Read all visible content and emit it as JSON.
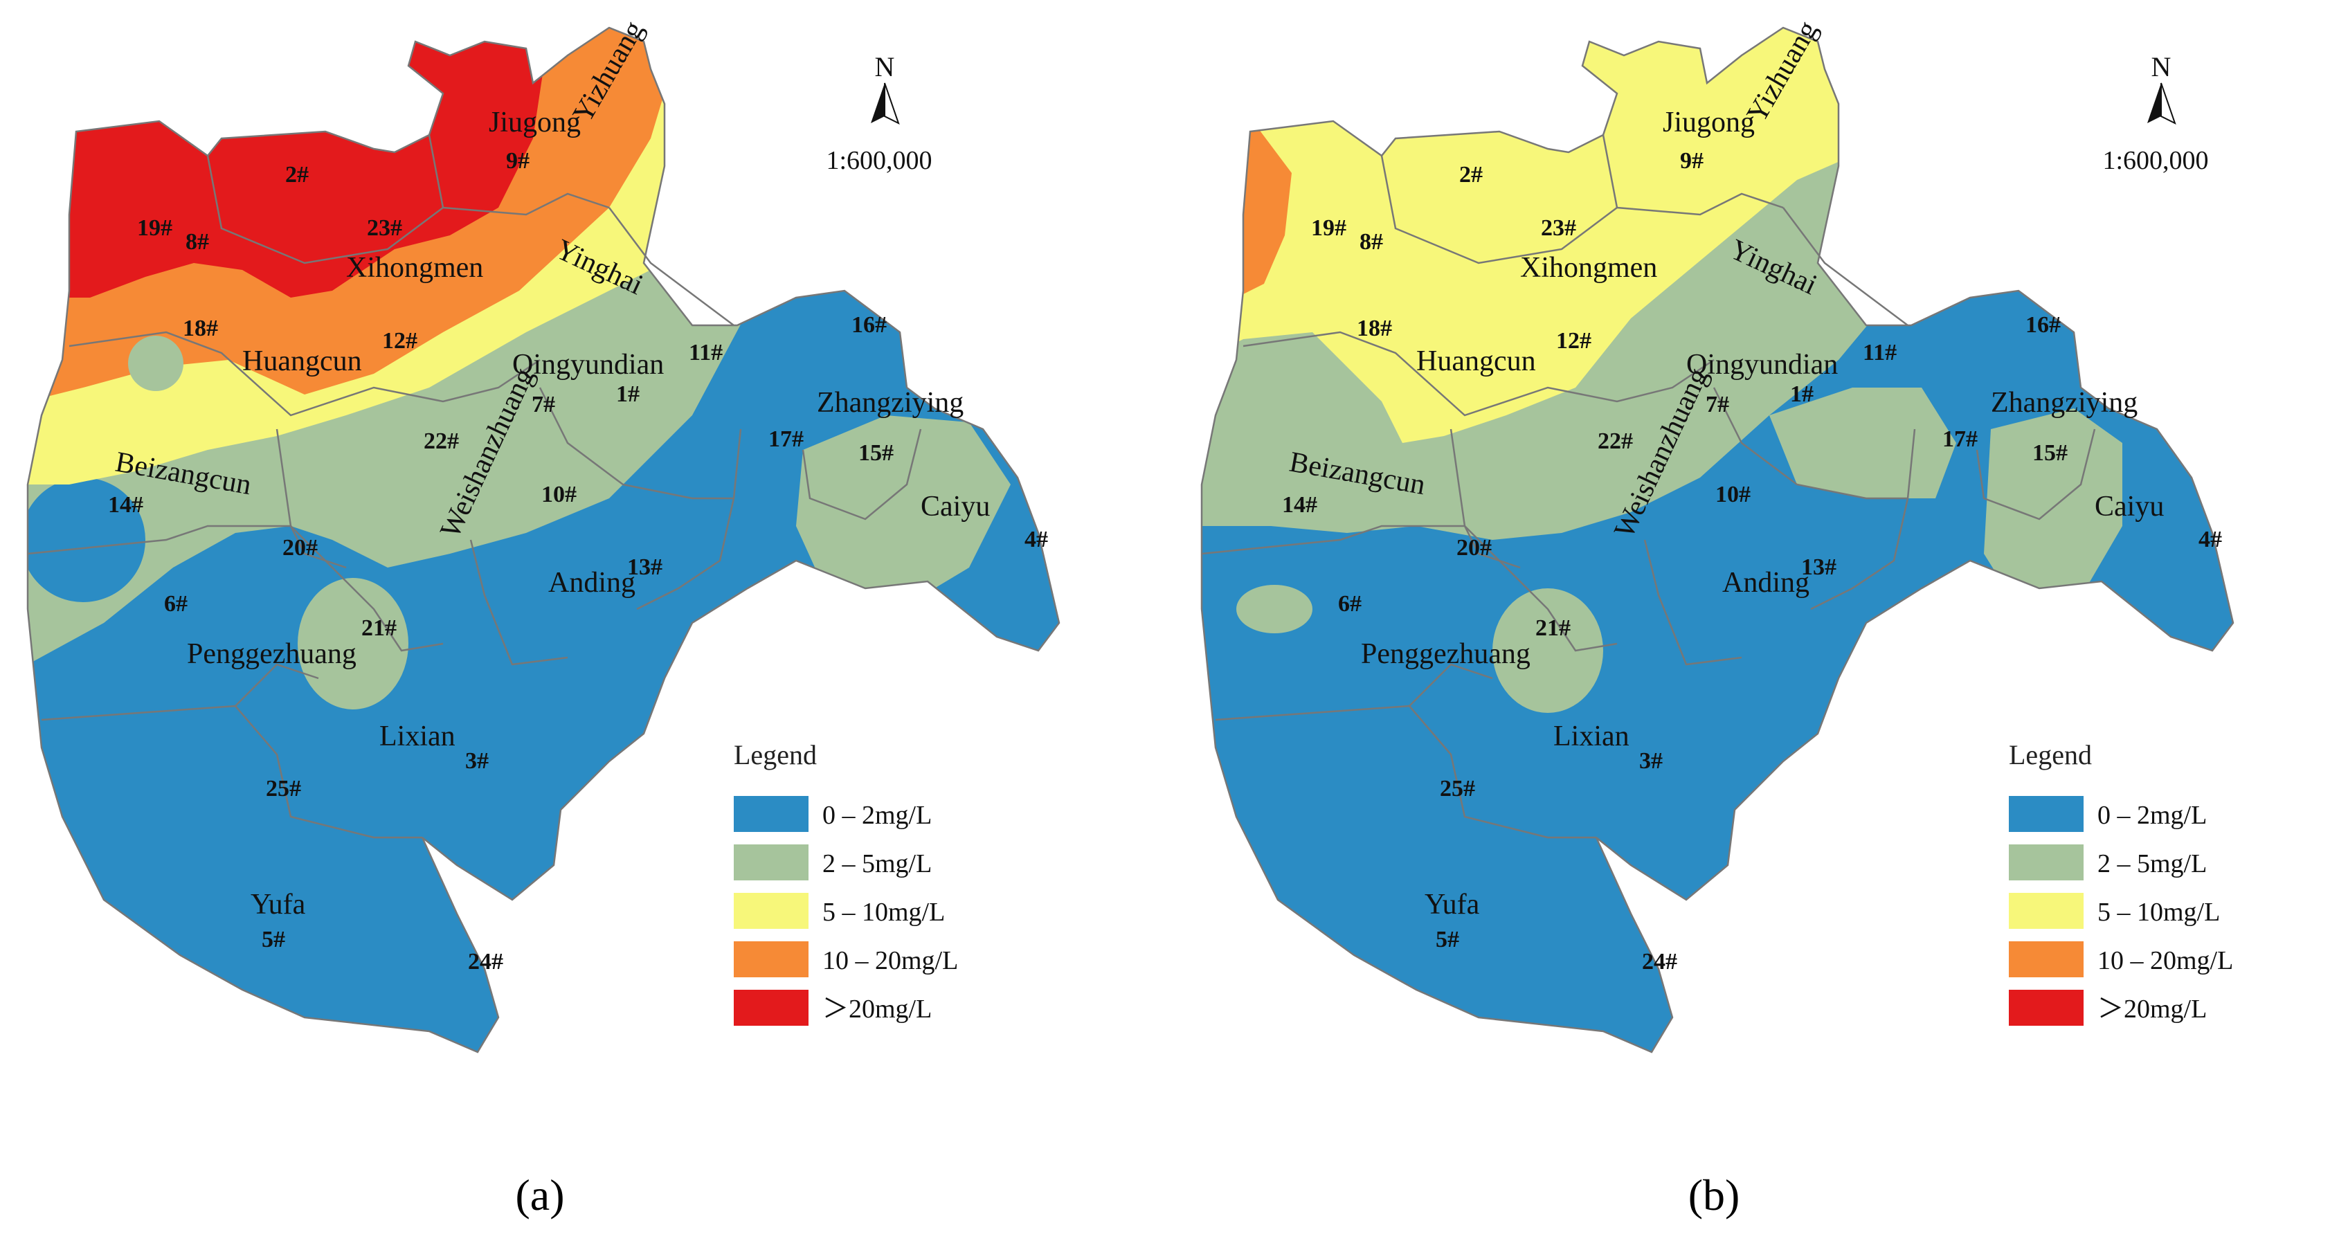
{
  "panels": [
    {
      "id": "a",
      "caption": "(a)",
      "north_label": "N",
      "scale": "1:600,000",
      "legend_title": "Legend",
      "class_colors": [
        "#2b8cc4",
        "#a6c49c",
        "#f7f77a",
        "#f68a36",
        "#e31a1c"
      ]
    },
    {
      "id": "b",
      "caption": "(b)",
      "north_label": "N",
      "scale": "1:600,000",
      "legend_title": "Legend",
      "class_colors": [
        "#2b8cc4",
        "#a6c49c",
        "#f7f77a",
        "#f68a36",
        "#e31a1c"
      ]
    }
  ],
  "legend": [
    {
      "label": "0 – 2mg/L",
      "color": "#2b8cc4"
    },
    {
      "label": "2 – 5mg/L",
      "color": "#a6c49c"
    },
    {
      "label": "5 – 10mg/L",
      "color": "#f7f77a"
    },
    {
      "label": "10 – 20mg/L",
      "color": "#f68a36"
    },
    {
      "label": "＞20mg/L",
      "color": "#e31a1c"
    }
  ],
  "places": [
    "Jiugong",
    "Yizhuang",
    "Yinghai",
    "Xihongmen",
    "Huangcun",
    "Qingyundian",
    "Zhangziying",
    "Beizangcun",
    "Weishanzhuang",
    "Caiyu",
    "Anding",
    "Penggezhuang",
    "Lixian",
    "Yufa"
  ],
  "sites": [
    "2#",
    "9#",
    "19#",
    "8#",
    "23#",
    "18#",
    "12#",
    "11#",
    "16#",
    "1#",
    "7#",
    "22#",
    "17#",
    "15#",
    "14#",
    "10#",
    "20#",
    "13#",
    "4#",
    "6#",
    "21#",
    "3#",
    "25#",
    "5#",
    "24#"
  ]
}
